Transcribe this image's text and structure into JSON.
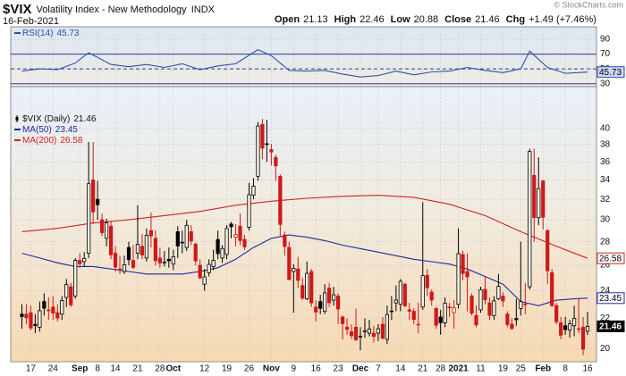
{
  "header": {
    "symbol": "$VIX",
    "name": "Volatility Index - New Methodology",
    "exchange": "INDX",
    "date": "16-Feb-2021",
    "quote": [
      {
        "label": "Open",
        "value": 21.13
      },
      {
        "label": "High",
        "value": 22.46
      },
      {
        "label": "Low",
        "value": 20.88
      },
      {
        "label": "Close",
        "value": 21.46
      },
      {
        "label": "Chg",
        "value": "+1.49 (+7.46%)"
      }
    ],
    "credit": "© StockCharts.com"
  },
  "chart_data": [
    {
      "type": "line",
      "ylim": [
        26,
        107
      ],
      "yticks": [
        30,
        50,
        70,
        90
      ],
      "xlim": [
        -2.5,
        129
      ],
      "bands": [
        30,
        70
      ],
      "centerline": 50,
      "grid": true,
      "series": [
        {
          "name": "RSI(14)",
          "last": 45.73,
          "color": "#2f4fa8",
          "x": [
            0,
            4,
            8,
            12,
            15,
            20,
            24,
            28,
            32,
            36,
            40,
            44,
            48,
            53,
            56,
            60,
            64,
            68,
            72,
            76,
            80,
            84,
            88,
            92,
            96,
            100,
            104,
            108,
            112,
            114,
            118,
            122,
            127
          ],
          "values": [
            47,
            50,
            49,
            58,
            72,
            56,
            53,
            56,
            52,
            57,
            49,
            54,
            57,
            76,
            68,
            48,
            47,
            48,
            43,
            39,
            41,
            47,
            42,
            46,
            47,
            52,
            48,
            45,
            50,
            74,
            52,
            44,
            45.73
          ]
        }
      ]
    },
    {
      "type": "candlestick",
      "title": "$VIX (Daily)",
      "last": 21.46,
      "log_scale": true,
      "grid": true,
      "ylim": [
        19.2,
        45.6
      ],
      "yticks": [
        20,
        22,
        24,
        26,
        28,
        30,
        32,
        34,
        36,
        38,
        40
      ],
      "xlim": [
        -2.5,
        129
      ],
      "xticks": [
        {
          "value": 2,
          "label": "17"
        },
        {
          "value": 7,
          "label": "24"
        },
        {
          "value": 13,
          "label": "Sep"
        },
        {
          "value": 17,
          "label": "8"
        },
        {
          "value": 21,
          "label": "14"
        },
        {
          "value": 26,
          "label": "21"
        },
        {
          "value": 31,
          "label": "28"
        },
        {
          "value": 34,
          "label": "Oct"
        },
        {
          "value": 41,
          "label": "12"
        },
        {
          "value": 46,
          "label": "19"
        },
        {
          "value": 51,
          "label": "26"
        },
        {
          "value": 56,
          "label": "Nov"
        },
        {
          "value": 61,
          "label": "9"
        },
        {
          "value": 66,
          "label": "16"
        },
        {
          "value": 71,
          "label": "23"
        },
        {
          "value": 76,
          "label": "Dec"
        },
        {
          "value": 80,
          "label": "7"
        },
        {
          "value": 85,
          "label": "14"
        },
        {
          "value": 90,
          "label": "21"
        },
        {
          "value": 94,
          "label": "28"
        },
        {
          "value": 98,
          "label": "2021"
        },
        {
          "value": 103,
          "label": "11"
        },
        {
          "value": 108,
          "label": "19"
        },
        {
          "value": 112,
          "label": "25"
        },
        {
          "value": 117,
          "label": "Feb"
        },
        {
          "value": 122,
          "label": "8"
        },
        {
          "value": 127,
          "label": "16"
        }
      ],
      "open": [
        22.3,
        22.3,
        22.4,
        21.6,
        21.4,
        23.2,
        22.6,
        22.8,
        22.4,
        22.3,
        23.5,
        24.3,
        23.6,
        26.4,
        26.3,
        27.0,
        34.0,
        32.0,
        30.0,
        28.3,
        29.4,
        27.0,
        25.7,
        25.5,
        27.5,
        26.4,
        27.0,
        27.6,
        26.6,
        29.0,
        28.3,
        26.6,
        26.2,
        26.5,
        26.1,
        28.9,
        27.9,
        27.5,
        28.9,
        27.8,
        26.0,
        24.5,
        25.4,
        25.9,
        28.2,
        26.6,
        26.9,
        29.6,
        28.4,
        29.4,
        28.2,
        29.3,
        32.4,
        34.4,
        40.5,
        38.1,
        37.4,
        36.5,
        34.4,
        28.6,
        27.5,
        25.5,
        25.7,
        24.4,
        23.4,
        25.5,
        22.8,
        23.2,
        22.5,
        24.2,
        23.3,
        23.6,
        22.1,
        21.4,
        21.1,
        21.4,
        20.8,
        21.1,
        21.0,
        21.0,
        21.0,
        21.6,
        20.6,
        22.5,
        23.1,
        23.0,
        24.5,
        22.6,
        22.5,
        21.6,
        22.8,
        25.2,
        23.9,
        22.7,
        22.1,
        21.7,
        22.8,
        22.4,
        23.0,
        26.9,
        25.5,
        23.6,
        22.2,
        22.6,
        24.1,
        23.1,
        22.2,
        23.4,
        23.6,
        22.3,
        21.6,
        22.0,
        22.7,
        23.0,
        24.3,
        34.5,
        30.2,
        33.9,
        29.0,
        25.4,
        22.9,
        21.7,
        21.5,
        21.2,
        21.5,
        21.3,
        21.4,
        21.13
      ],
      "high": [
        23.0,
        23.0,
        22.9,
        22.3,
        23.2,
        23.8,
        23.5,
        23.6,
        23.0,
        23.6,
        24.9,
        24.6,
        26.6,
        27.0,
        27.1,
        38.3,
        38.3,
        33.9,
        30.6,
        30.1,
        29.9,
        27.6,
        26.8,
        26.8,
        28.0,
        27.7,
        31.4,
        28.7,
        29.2,
        30.7,
        29.0,
        27.5,
        27.2,
        27.5,
        27.3,
        29.4,
        29.0,
        30.0,
        29.5,
        27.9,
        26.5,
        25.7,
        26.5,
        27.3,
        29.0,
        27.7,
        29.5,
        29.8,
        29.6,
        30.6,
        28.6,
        33.7,
        34.2,
        40.8,
        41.2,
        41.1,
        38.1,
        36.8,
        34.6,
        28.9,
        28.0,
        26.1,
        26.7,
        25.0,
        26.3,
        25.7,
        23.3,
        23.7,
        24.5,
        24.6,
        24.3,
        23.8,
        22.2,
        22.0,
        21.6,
        22.7,
        21.4,
        22.0,
        21.9,
        21.5,
        21.6,
        22.1,
        22.9,
        23.6,
        24.4,
        24.9,
        24.6,
        23.1,
        22.7,
        23.1,
        31.7,
        25.7,
        24.1,
        22.8,
        22.6,
        23.5,
        23.1,
        23.3,
        29.2,
        27.2,
        27.0,
        23.8,
        22.9,
        24.3,
        25.1,
        23.5,
        23.6,
        25.3,
        23.9,
        22.5,
        22.0,
        23.4,
        28.0,
        24.6,
        37.5,
        37.5,
        36.5,
        34.0,
        29.1,
        25.7,
        23.1,
        22.1,
        22.1,
        21.9,
        22.9,
        23.4,
        22.1,
        22.46
      ],
      "low": [
        21.3,
        21.6,
        21.2,
        21.0,
        21.1,
        22.2,
        21.9,
        21.9,
        21.8,
        21.9,
        22.8,
        22.8,
        23.4,
        25.8,
        25.9,
        26.6,
        29.6,
        30.0,
        28.5,
        27.6,
        26.5,
        25.5,
        25.3,
        25.3,
        26.0,
        25.7,
        26.5,
        26.5,
        26.3,
        27.5,
        26.0,
        25.8,
        25.9,
        25.8,
        25.6,
        26.6,
        27.0,
        27.2,
        27.7,
        26.0,
        24.9,
        24.0,
        25.1,
        25.6,
        26.5,
        26.2,
        26.5,
        28.3,
        27.6,
        27.7,
        27.3,
        29.0,
        32.0,
        33.9,
        36.3,
        36.0,
        35.6,
        33.9,
        28.5,
        26.8,
        24.8,
        22.4,
        24.2,
        23.3,
        23.3,
        22.8,
        21.8,
        22.3,
        22.3,
        22.8,
        22.9,
        21.6,
        20.6,
        20.9,
        20.6,
        20.5,
        19.9,
        20.7,
        20.8,
        20.4,
        20.5,
        20.6,
        20.3,
        21.9,
        22.5,
        22.5,
        22.8,
        21.9,
        21.6,
        21.0,
        22.6,
        23.6,
        22.9,
        21.3,
        20.9,
        21.4,
        22.1,
        21.3,
        22.7,
        24.8,
        22.5,
        22.2,
        21.4,
        22.4,
        23.0,
        21.9,
        21.9,
        23.3,
        22.8,
        21.4,
        21.2,
        21.5,
        22.2,
        22.3,
        24.1,
        28.0,
        29.5,
        29.1,
        24.5,
        22.8,
        21.6,
        20.6,
        20.9,
        20.7,
        20.8,
        21.0,
        19.6,
        20.88
      ],
      "close": [
        22.13,
        22.05,
        21.35,
        21.51,
        22.54,
        22.72,
        22.54,
        22.37,
        22.03,
        23.27,
        24.47,
        22.96,
        26.41,
        26.12,
        26.57,
        33.6,
        30.75,
        31.46,
        28.81,
        29.71,
        26.87,
        25.85,
        25.59,
        26.04,
        26.46,
        25.83,
        27.78,
        26.86,
        28.58,
        28.51,
        26.38,
        26.19,
        26.27,
        26.37,
        26.7,
        27.63,
        27.96,
        29.48,
        28.06,
        26.36,
        25.0,
        25.07,
        26.07,
        26.4,
        26.97,
        27.41,
        29.18,
        29.35,
        28.65,
        28.11,
        27.55,
        32.46,
        33.35,
        40.28,
        37.59,
        38.02,
        37.13,
        35.55,
        29.57,
        27.58,
        24.86,
        25.75,
        24.8,
        23.45,
        25.35,
        23.1,
        22.45,
        22.71,
        23.84,
        23.11,
        23.7,
        22.66,
        21.64,
        21.25,
        20.84,
        20.57,
        20.77,
        21.17,
        21.28,
        20.79,
        21.3,
        20.68,
        22.27,
        22.52,
        23.31,
        24.72,
        22.89,
        22.5,
        21.93,
        21.57,
        25.16,
        24.23,
        23.31,
        21.53,
        21.7,
        23.08,
        22.77,
        22.75,
        26.97,
        25.34,
        25.07,
        22.37,
        21.56,
        24.08,
        23.33,
        22.21,
        23.25,
        24.34,
        23.24,
        21.58,
        21.32,
        21.91,
        23.19,
        23.02,
        37.21,
        30.21,
        33.09,
        30.24,
        25.56,
        22.91,
        21.77,
        20.87,
        21.24,
        21.63,
        21.99,
        21.25,
        19.97,
        21.46
      ],
      "series": [
        {
          "name": "MA(50)",
          "last": 23.45,
          "color": "#1f2a9e",
          "x": [
            0,
            4,
            8,
            12,
            16,
            20,
            24,
            28,
            32,
            36,
            40,
            44,
            48,
            52,
            56,
            60,
            64,
            68,
            72,
            76,
            80,
            84,
            88,
            92,
            96,
            100,
            104,
            108,
            112,
            116,
            120,
            124,
            127
          ],
          "values": [
            27.0,
            26.6,
            26.2,
            25.9,
            25.9,
            25.7,
            25.5,
            25.3,
            25.3,
            25.3,
            25.5,
            25.8,
            26.5,
            27.5,
            28.3,
            28.6,
            28.4,
            28.1,
            27.7,
            27.4,
            27.1,
            26.8,
            26.5,
            26.3,
            26.1,
            25.7,
            25.1,
            24.5,
            23.2,
            22.9,
            23.3,
            23.4,
            23.45
          ]
        },
        {
          "name": "MA(200)",
          "last": 26.58,
          "color": "#d42020",
          "x": [
            0,
            8,
            16,
            24,
            32,
            40,
            48,
            56,
            64,
            72,
            80,
            88,
            96,
            104,
            112,
            120,
            127
          ],
          "values": [
            28.9,
            29.2,
            29.7,
            30.0,
            30.4,
            30.8,
            31.4,
            31.8,
            32.1,
            32.3,
            32.4,
            32.2,
            31.5,
            30.4,
            28.9,
            27.6,
            26.58
          ]
        }
      ]
    }
  ]
}
